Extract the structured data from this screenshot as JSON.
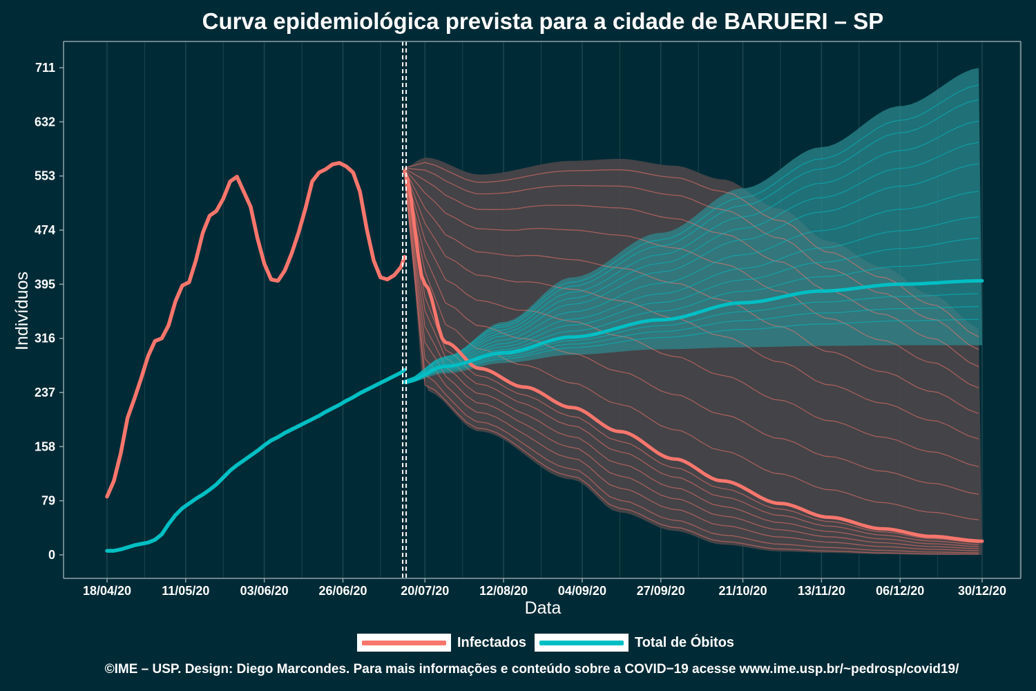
{
  "title": "Curva epidemiológica prevista para a cidade de BARUERI – SP",
  "footer": "©IME – USP. Design: Diego Marcondes. Para mais informações e conteúdo sobre a COVID−19 acesse www.ime.usp.br/~pedrosp/covid19/",
  "colors": {
    "background": "#002b36",
    "infectados": "#f8766d",
    "obitos": "#00bfc4",
    "band_infectados": "#4a4549",
    "band_obitos": "#2d8a90",
    "grid": "#1d444e",
    "axis": "#8fa5aa"
  },
  "chart_data": {
    "type": "line",
    "title": "Curva epidemiológica prevista para a cidade de BARUERI – SP",
    "xlabel": "Data",
    "ylabel": "Indivíduos",
    "x_ticks": [
      "18/04/20",
      "11/05/20",
      "03/06/20",
      "26/06/20",
      "20/07/20",
      "12/08/20",
      "04/09/20",
      "27/09/20",
      "21/10/20",
      "13/11/20",
      "06/12/20",
      "30/12/20"
    ],
    "y_ticks": [
      "0",
      "79",
      "158",
      "237",
      "316",
      "395",
      "474",
      "553",
      "632",
      "711"
    ],
    "xlim": [
      "2020-04-18",
      "2020-12-30"
    ],
    "ylim": [
      0,
      711
    ],
    "grid": true,
    "legend_position": "bottom",
    "forecast_start": "2020-07-14",
    "series": [
      {
        "name": "Infectados",
        "observed": {
          "x": [
            "2020-04-18",
            "2020-04-20",
            "2020-04-22",
            "2020-04-24",
            "2020-04-26",
            "2020-04-28",
            "2020-04-30",
            "2020-05-02",
            "2020-05-04",
            "2020-05-06",
            "2020-05-08",
            "2020-05-10",
            "2020-05-12",
            "2020-05-14",
            "2020-05-16",
            "2020-05-18",
            "2020-05-20",
            "2020-05-22",
            "2020-05-24",
            "2020-05-26",
            "2020-05-28",
            "2020-05-30",
            "2020-06-01",
            "2020-06-03",
            "2020-06-05",
            "2020-06-07",
            "2020-06-09",
            "2020-06-11",
            "2020-06-13",
            "2020-06-15",
            "2020-06-17",
            "2020-06-19",
            "2020-06-21",
            "2020-06-23",
            "2020-06-25",
            "2020-06-27",
            "2020-06-29",
            "2020-07-01",
            "2020-07-03",
            "2020-07-05",
            "2020-07-07",
            "2020-07-09",
            "2020-07-11",
            "2020-07-13",
            "2020-07-14"
          ],
          "y": [
            85,
            108,
            148,
            200,
            228,
            258,
            290,
            312,
            316,
            335,
            370,
            393,
            398,
            430,
            470,
            495,
            502,
            520,
            545,
            552,
            530,
            508,
            462,
            425,
            402,
            400,
            415,
            440,
            470,
            505,
            545,
            558,
            563,
            570,
            572,
            567,
            558,
            530,
            475,
            430,
            405,
            402,
            408,
            420,
            435
          ]
        },
        "forecast_median": {
          "x": [
            "2020-07-14",
            "2020-07-20",
            "2020-07-26",
            "2020-08-05",
            "2020-08-18",
            "2020-09-01",
            "2020-09-15",
            "2020-10-01",
            "2020-10-15",
            "2020-11-01",
            "2020-11-15",
            "2020-12-01",
            "2020-12-15",
            "2020-12-30"
          ],
          "y": [
            560,
            395,
            310,
            272,
            245,
            215,
            180,
            140,
            108,
            75,
            55,
            38,
            27,
            20
          ]
        },
        "forecast_band": {
          "x": [
            "2020-07-14",
            "2020-07-20",
            "2020-08-05",
            "2020-09-01",
            "2020-09-15",
            "2020-10-01",
            "2020-10-15",
            "2020-11-01",
            "2020-11-15",
            "2020-12-01",
            "2020-12-15",
            "2020-12-30"
          ],
          "upper": [
            565,
            580,
            555,
            575,
            578,
            568,
            548,
            505,
            458,
            420,
            380,
            330
          ],
          "lower": [
            555,
            240,
            180,
            110,
            62,
            35,
            15,
            5,
            3,
            1,
            0,
            0
          ]
        }
      },
      {
        "name": "Total de Óbitos",
        "observed": {
          "x": [
            "2020-04-18",
            "2020-04-20",
            "2020-04-22",
            "2020-04-24",
            "2020-04-26",
            "2020-04-28",
            "2020-04-30",
            "2020-05-02",
            "2020-05-04",
            "2020-05-06",
            "2020-05-08",
            "2020-05-10",
            "2020-05-12",
            "2020-05-14",
            "2020-05-16",
            "2020-05-18",
            "2020-05-20",
            "2020-05-22",
            "2020-05-24",
            "2020-05-26",
            "2020-05-28",
            "2020-05-30",
            "2020-06-01",
            "2020-06-03",
            "2020-06-05",
            "2020-06-07",
            "2020-06-09",
            "2020-06-11",
            "2020-06-13",
            "2020-06-15",
            "2020-06-17",
            "2020-06-19",
            "2020-06-21",
            "2020-06-23",
            "2020-06-25",
            "2020-06-27",
            "2020-06-29",
            "2020-07-01",
            "2020-07-03",
            "2020-07-05",
            "2020-07-07",
            "2020-07-09",
            "2020-07-11",
            "2020-07-13",
            "2020-07-14"
          ],
          "y": [
            6,
            6,
            8,
            11,
            14,
            16,
            18,
            22,
            30,
            45,
            58,
            68,
            75,
            82,
            88,
            95,
            103,
            113,
            123,
            131,
            138,
            145,
            152,
            160,
            167,
            172,
            178,
            183,
            188,
            193,
            198,
            203,
            209,
            214,
            219,
            225,
            230,
            236,
            241,
            246,
            251,
            256,
            261,
            266,
            270
          ]
        },
        "forecast_median": {
          "x": [
            "2020-07-14",
            "2020-07-26",
            "2020-08-12",
            "2020-09-01",
            "2020-09-27",
            "2020-10-21",
            "2020-11-13",
            "2020-12-06",
            "2020-12-30"
          ],
          "y": [
            252,
            275,
            295,
            318,
            343,
            368,
            385,
            395,
            400
          ]
        },
        "forecast_band": {
          "x": [
            "2020-07-14",
            "2020-07-26",
            "2020-08-12",
            "2020-09-01",
            "2020-09-27",
            "2020-10-21",
            "2020-11-13",
            "2020-12-06",
            "2020-12-30"
          ],
          "upper": [
            255,
            290,
            340,
            405,
            470,
            535,
            595,
            655,
            711
          ],
          "lower": [
            250,
            265,
            280,
            292,
            300,
            303,
            305,
            306,
            306
          ]
        }
      }
    ]
  }
}
